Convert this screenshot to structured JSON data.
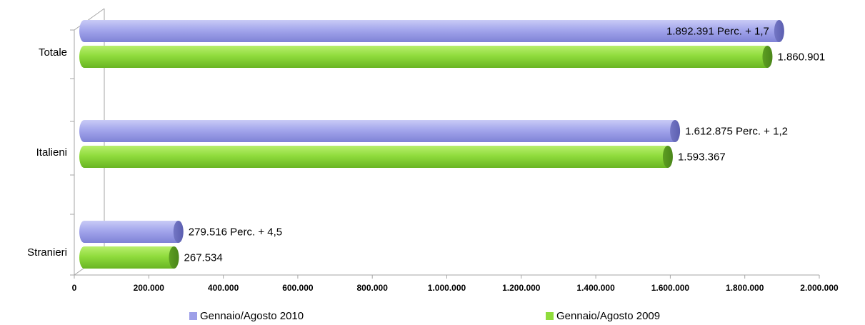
{
  "chart_data": {
    "type": "bar",
    "orientation": "horizontal",
    "categories": [
      "Totale",
      "Italieni",
      "Stranieri"
    ],
    "series": [
      {
        "name": "Gennaio/Agosto 2010",
        "color": "#9d9fe8",
        "values": [
          1892391,
          1612875,
          279516
        ],
        "labels": [
          "1.892.391  Perc. + 1,7",
          "1.612.875 Perc.  + 1,2",
          "279.516 Perc.  + 4,5"
        ]
      },
      {
        "name": "Gennaio/Agosto 2009",
        "color": "#8fdc3c",
        "values": [
          1860901,
          1593367,
          267534
        ],
        "labels": [
          "1.860.901",
          "1.593.367",
          "267.534"
        ]
      }
    ],
    "xlim": [
      0,
      2000000
    ],
    "xticks": [
      0,
      200000,
      400000,
      600000,
      800000,
      1000000,
      1200000,
      1400000,
      1600000,
      1800000,
      2000000
    ],
    "xtick_labels": [
      "0",
      "200.000",
      "400.000",
      "600.000",
      "800.000",
      "1.000.000",
      "1.200.000",
      "1.400.000",
      "1.600.000",
      "1.800.000",
      "2.000.000"
    ],
    "legend_position": "bottom",
    "grid": false
  },
  "legend": {
    "series_2010": "Gennaio/Agosto 2010",
    "series_2009": "Gennaio/Agosto 2009"
  }
}
